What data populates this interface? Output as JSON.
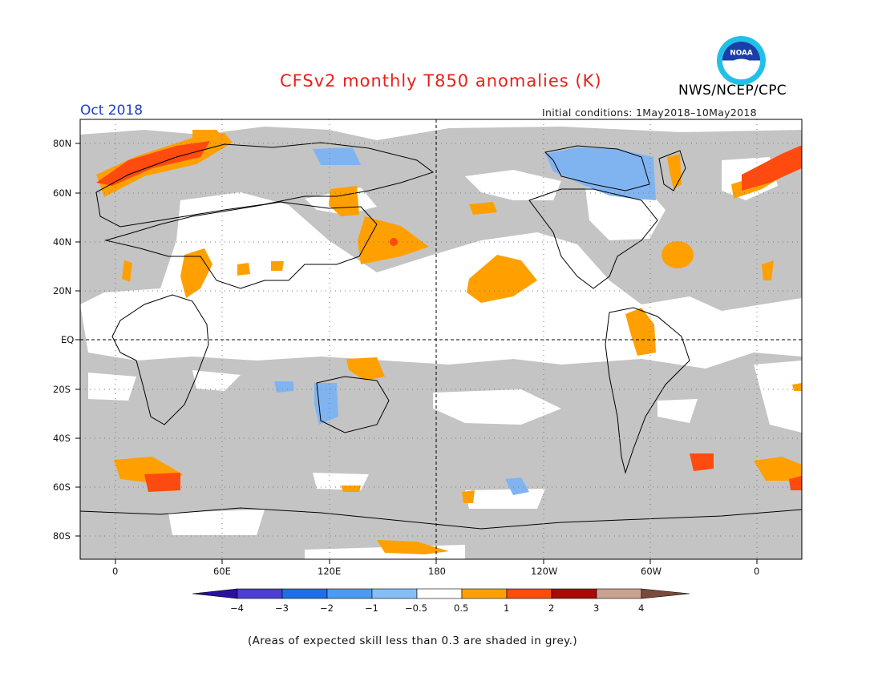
{
  "title": "CFSv2 monthly T850 anomalies (K)",
  "month_label": "Oct 2018",
  "agency": "NWS/NCEP/CPC",
  "logo_text": "NOAA",
  "initial_conditions": "Initial conditions: 1May2018–10May2018",
  "lat_labels": [
    "80N",
    "60N",
    "40N",
    "20N",
    "EQ",
    "20S",
    "40S",
    "60S",
    "80S"
  ],
  "lon_labels": [
    "0",
    "60E",
    "120E",
    "180",
    "120W",
    "60W",
    "0"
  ],
  "colorbar": {
    "tick_labels": [
      "−4",
      "−3",
      "−2",
      "−1",
      "−0.5",
      "0.5",
      "1",
      "2",
      "3",
      "4"
    ],
    "colors": [
      "#2a0fa0",
      "#4a3fd0",
      "#1f6ee6",
      "#4d9bf0",
      "#86bdf5",
      "#ffffff",
      "#ffa000",
      "#ff4a10",
      "#a80a06",
      "#c9a28f",
      "#7b4a3a"
    ]
  },
  "footnote": "(Areas of expected skill less than 0.3 are shaded in grey.)",
  "colors": {
    "title": "#e8201c",
    "month": "#1e3ccf",
    "grey_shade": "#c4c4c4",
    "orange": "#ffa000",
    "red": "#ff4a10",
    "blue": "#80b4f0"
  }
}
